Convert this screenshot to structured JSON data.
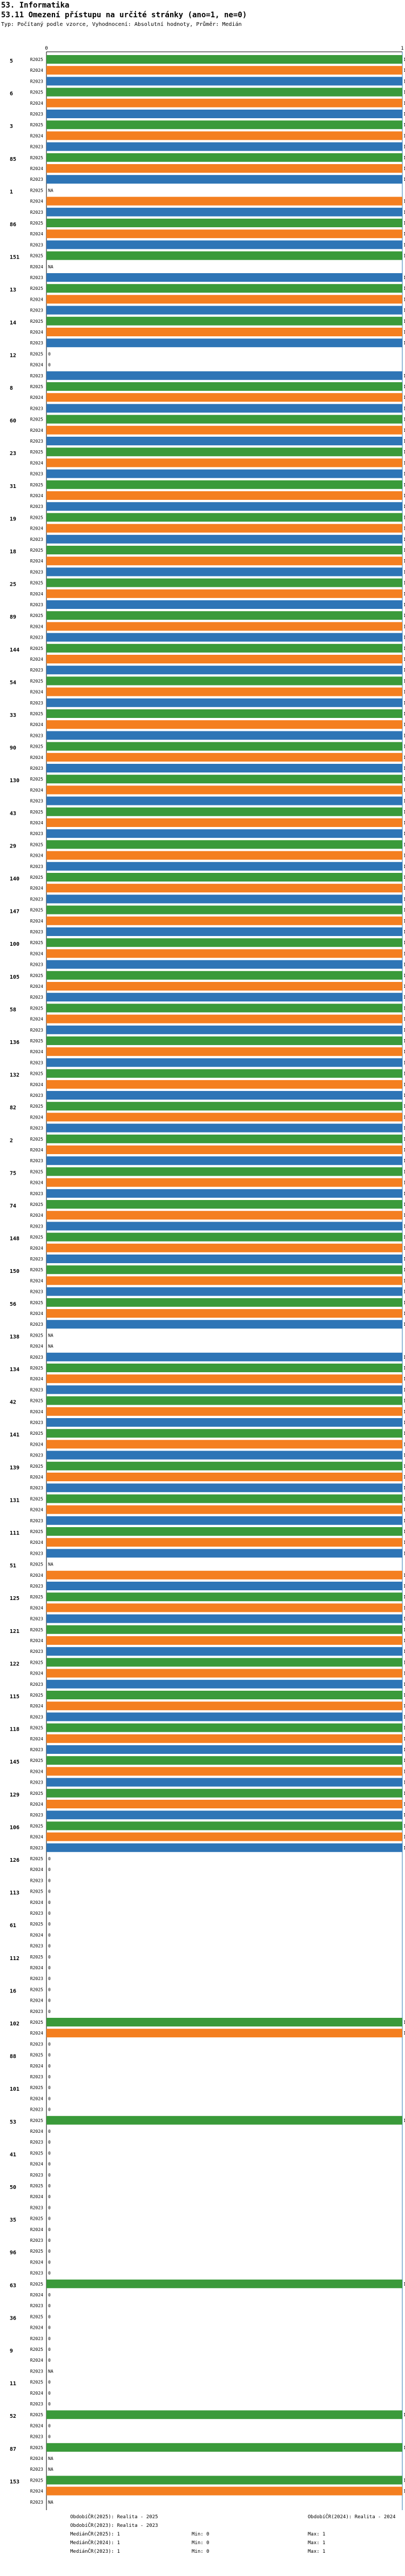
{
  "header": {
    "title": "53. Informatika",
    "question": "53.11 Omezení přístupu na určité stránky (ano=1, ne=0)",
    "subtitle": "Typ: Počítaný podle vzorce, Vyhodnocení: Absolutní hodnoty, Průměr: Medián"
  },
  "legend": {
    "rows": [
      [
        "ObdobíČR(2025): Realita - 2025",
        "",
        "ObdobíČR(2024): Realita - 2024"
      ],
      [
        "ObdobíČR(2023): Realita - 2023",
        "",
        ""
      ],
      [
        "MediánČR(2025): 1",
        "Min: 0",
        "Max: 1"
      ],
      [
        "MediánČR(2024): 1",
        "Min: 0",
        "Max: 1"
      ],
      [
        "MediánČR(2023): 1",
        "Min: 0",
        "Max: 1"
      ]
    ]
  },
  "chart_data": {
    "type": "bar",
    "orientation": "horizontal",
    "title": "53.11 Omezení přístupu na určité stránky (ano=1, ne=0)",
    "xlim": [
      0,
      1
    ],
    "axis_top_labels": [
      "0",
      "1"
    ],
    "series_names": [
      "R2025",
      "R2024",
      "R2023"
    ],
    "series_colors": [
      "#3a9a3a",
      "#f47f20",
      "#2e75b6"
    ],
    "groups": [
      {
        "id": "5",
        "values": [
          1,
          1,
          1
        ]
      },
      {
        "id": "6",
        "values": [
          1,
          1,
          1
        ]
      },
      {
        "id": "3",
        "values": [
          1,
          1,
          1
        ]
      },
      {
        "id": "85",
        "values": [
          1,
          1,
          1
        ]
      },
      {
        "id": "1",
        "values": [
          null,
          1,
          1
        ]
      },
      {
        "id": "86",
        "values": [
          1,
          1,
          1
        ]
      },
      {
        "id": "151",
        "values": [
          1,
          null,
          1
        ]
      },
      {
        "id": "13",
        "values": [
          1,
          1,
          1
        ]
      },
      {
        "id": "14",
        "values": [
          1,
          1,
          1
        ]
      },
      {
        "id": "12",
        "values": [
          0,
          0,
          1
        ]
      },
      {
        "id": "8",
        "values": [
          1,
          1,
          1
        ]
      },
      {
        "id": "60",
        "values": [
          1,
          1,
          1
        ]
      },
      {
        "id": "23",
        "values": [
          1,
          1,
          1
        ]
      },
      {
        "id": "31",
        "values": [
          1,
          1,
          1
        ]
      },
      {
        "id": "19",
        "values": [
          1,
          1,
          1
        ]
      },
      {
        "id": "18",
        "values": [
          1,
          1,
          1
        ]
      },
      {
        "id": "25",
        "values": [
          1,
          1,
          1
        ]
      },
      {
        "id": "89",
        "values": [
          1,
          1,
          1
        ]
      },
      {
        "id": "144",
        "values": [
          1,
          1,
          1
        ]
      },
      {
        "id": "54",
        "values": [
          1,
          1,
          1
        ]
      },
      {
        "id": "33",
        "values": [
          1,
          1,
          1
        ]
      },
      {
        "id": "90",
        "values": [
          1,
          1,
          1
        ]
      },
      {
        "id": "130",
        "values": [
          1,
          1,
          1
        ]
      },
      {
        "id": "43",
        "values": [
          1,
          1,
          1
        ]
      },
      {
        "id": "29",
        "values": [
          1,
          1,
          1
        ]
      },
      {
        "id": "140",
        "values": [
          1,
          1,
          1
        ]
      },
      {
        "id": "147",
        "values": [
          1,
          1,
          1
        ]
      },
      {
        "id": "100",
        "values": [
          1,
          1,
          1
        ]
      },
      {
        "id": "105",
        "values": [
          1,
          1,
          1
        ]
      },
      {
        "id": "58",
        "values": [
          1,
          1,
          1
        ]
      },
      {
        "id": "136",
        "values": [
          1,
          1,
          1
        ]
      },
      {
        "id": "132",
        "values": [
          1,
          1,
          1
        ]
      },
      {
        "id": "82",
        "values": [
          1,
          1,
          1
        ]
      },
      {
        "id": "2",
        "values": [
          1,
          1,
          1
        ]
      },
      {
        "id": "75",
        "values": [
          1,
          1,
          1
        ]
      },
      {
        "id": "74",
        "values": [
          1,
          1,
          1
        ]
      },
      {
        "id": "148",
        "values": [
          1,
          1,
          1
        ]
      },
      {
        "id": "150",
        "values": [
          1,
          1,
          1
        ]
      },
      {
        "id": "56",
        "values": [
          1,
          1,
          1
        ]
      },
      {
        "id": "138",
        "values": [
          null,
          null,
          1
        ]
      },
      {
        "id": "134",
        "values": [
          1,
          1,
          1
        ]
      },
      {
        "id": "42",
        "values": [
          1,
          1,
          1
        ]
      },
      {
        "id": "141",
        "values": [
          1,
          1,
          1
        ]
      },
      {
        "id": "139",
        "values": [
          1,
          1,
          1
        ]
      },
      {
        "id": "131",
        "values": [
          1,
          1,
          1
        ]
      },
      {
        "id": "111",
        "values": [
          1,
          1,
          1
        ]
      },
      {
        "id": "51",
        "values": [
          null,
          1,
          1
        ]
      },
      {
        "id": "125",
        "values": [
          1,
          1,
          1
        ]
      },
      {
        "id": "121",
        "values": [
          1,
          1,
          1
        ]
      },
      {
        "id": "122",
        "values": [
          1,
          1,
          1
        ]
      },
      {
        "id": "115",
        "values": [
          1,
          1,
          1
        ]
      },
      {
        "id": "118",
        "values": [
          1,
          1,
          1
        ]
      },
      {
        "id": "145",
        "values": [
          1,
          1,
          1
        ]
      },
      {
        "id": "129",
        "values": [
          1,
          1,
          1
        ]
      },
      {
        "id": "106",
        "values": [
          1,
          1,
          1
        ]
      },
      {
        "id": "126",
        "values": [
          0,
          0,
          0
        ]
      },
      {
        "id": "113",
        "values": [
          0,
          0,
          0
        ]
      },
      {
        "id": "61",
        "values": [
          0,
          0,
          0
        ]
      },
      {
        "id": "112",
        "values": [
          0,
          0,
          0
        ]
      },
      {
        "id": "16",
        "values": [
          0,
          0,
          0
        ]
      },
      {
        "id": "102",
        "values": [
          1,
          1,
          0
        ]
      },
      {
        "id": "88",
        "values": [
          0,
          0,
          0
        ]
      },
      {
        "id": "101",
        "values": [
          0,
          0,
          0
        ]
      },
      {
        "id": "53",
        "values": [
          1,
          0,
          0
        ]
      },
      {
        "id": "41",
        "values": [
          0,
          0,
          0
        ]
      },
      {
        "id": "50",
        "values": [
          0,
          0,
          0
        ]
      },
      {
        "id": "35",
        "values": [
          0,
          0,
          0
        ]
      },
      {
        "id": "96",
        "values": [
          0,
          0,
          0
        ]
      },
      {
        "id": "63",
        "values": [
          1,
          0,
          0
        ]
      },
      {
        "id": "36",
        "values": [
          0,
          0,
          0
        ]
      },
      {
        "id": "9",
        "values": [
          0,
          0,
          null
        ]
      },
      {
        "id": "11",
        "values": [
          0,
          0,
          0
        ]
      },
      {
        "id": "52",
        "values": [
          1,
          0,
          0
        ]
      },
      {
        "id": "87",
        "values": [
          1,
          null,
          null
        ]
      },
      {
        "id": "153",
        "values": [
          1,
          1,
          null
        ]
      },
      {
        "id": "7",
        "values": [
          null,
          null,
          null
        ]
      }
    ]
  }
}
